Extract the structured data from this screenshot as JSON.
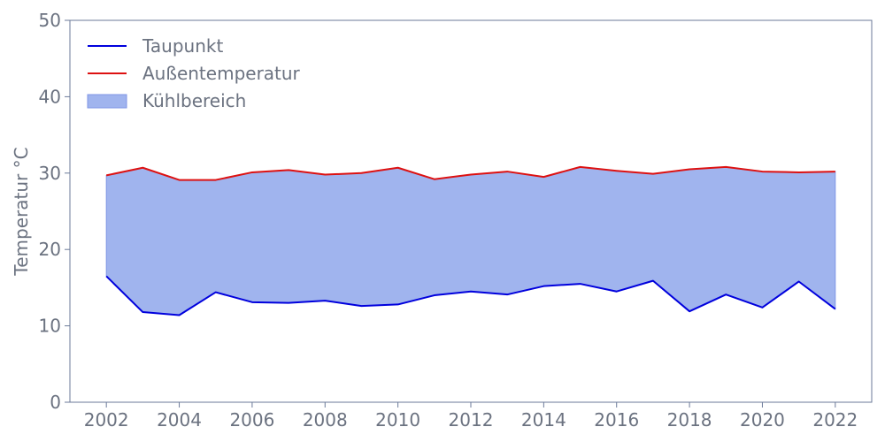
{
  "chart_data": {
    "type": "area",
    "x": [
      2002,
      2003,
      2004,
      2005,
      2006,
      2007,
      2008,
      2009,
      2010,
      2011,
      2012,
      2013,
      2014,
      2015,
      2016,
      2017,
      2018,
      2019,
      2020,
      2021,
      2022
    ],
    "series": [
      {
        "name": "Taupunkt",
        "values": [
          16.5,
          11.8,
          11.4,
          14.4,
          13.1,
          13.0,
          13.3,
          12.6,
          12.8,
          14.0,
          14.5,
          14.1,
          15.2,
          15.5,
          14.5,
          15.9,
          11.9,
          14.1,
          12.4,
          15.8,
          12.2
        ],
        "color": "#0000dd"
      },
      {
        "name": "Außentemperatur",
        "values": [
          29.7,
          30.7,
          29.1,
          29.1,
          30.1,
          30.4,
          29.8,
          30.0,
          30.7,
          29.2,
          29.8,
          30.2,
          29.5,
          30.8,
          30.3,
          29.9,
          30.5,
          30.8,
          30.2,
          30.1,
          30.2
        ],
        "color": "#dd1111"
      }
    ],
    "fill": {
      "name": "Kühlbereich",
      "between": [
        "Taupunkt",
        "Außentemperatur"
      ],
      "color": "#a0b4ee",
      "edge_color": "#7f96e6"
    },
    "ylabel": "Temperatur °C",
    "xlabel": "",
    "ylim": [
      0,
      50
    ],
    "yticks": [
      "0",
      "10",
      "20",
      "30",
      "40",
      "50"
    ],
    "xticks": [
      "2002",
      "2004",
      "2006",
      "2008",
      "2010",
      "2012",
      "2014",
      "2016",
      "2018",
      "2020",
      "2022"
    ],
    "legend_position": "top-left",
    "grid": false
  }
}
